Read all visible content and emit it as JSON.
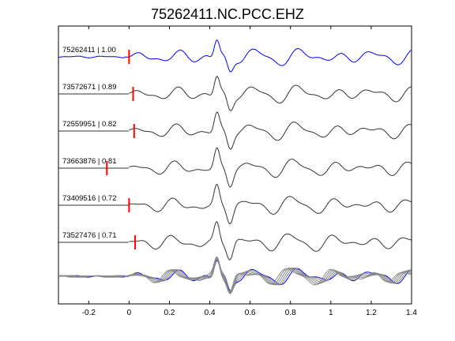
{
  "chart_data": {
    "type": "line",
    "title": "75262411.NC.PCC.EHZ",
    "xlabel": "",
    "ylabel": "",
    "xlim": [
      -0.35,
      1.4
    ],
    "x_ticks": [
      "-0.2",
      "0",
      "0.2",
      "0.4",
      "0.6",
      "0.8",
      "1",
      "1.2",
      "1.4"
    ],
    "x_tick_values": [
      -0.2,
      0,
      0.2,
      0.4,
      0.6,
      0.8,
      1.0,
      1.2,
      1.4
    ],
    "grid": false,
    "legend": "none",
    "traces": [
      {
        "label": "75262411 | 1.00",
        "pick": 0.0,
        "color": "#0000ff"
      },
      {
        "label": "73572671 | 0.89",
        "pick": 0.02,
        "color": "#333333"
      },
      {
        "label": "72559951 | 0.82",
        "pick": 0.025,
        "color": "#333333"
      },
      {
        "label": "73663876 | 0.81",
        "pick": -0.11,
        "color": "#333333"
      },
      {
        "label": "73409516 | 0.72",
        "pick": 0.0,
        "color": "#333333"
      },
      {
        "label": "73527476 | 0.71",
        "pick": 0.03,
        "color": "#333333"
      }
    ],
    "stack": {
      "primary_color": "#0000ff",
      "others_color": "#888888"
    },
    "pick_color": "#ff0000"
  }
}
